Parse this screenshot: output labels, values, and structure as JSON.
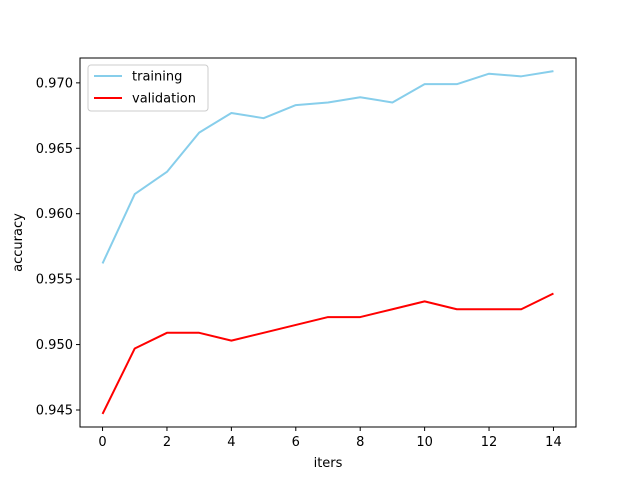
{
  "chart_data": {
    "type": "line",
    "title": "",
    "xlabel": "iters",
    "ylabel": "accuracy",
    "x": [
      0,
      1,
      2,
      3,
      4,
      5,
      6,
      7,
      8,
      9,
      10,
      11,
      12,
      13,
      14
    ],
    "xlim": [
      -0.7,
      14.7
    ],
    "ylim": [
      0.9437,
      0.9719
    ],
    "xticks": [
      0,
      2,
      4,
      6,
      8,
      10,
      12,
      14
    ],
    "xtick_labels": [
      "0",
      "2",
      "4",
      "6",
      "8",
      "10",
      "12",
      "14"
    ],
    "yticks": [
      0.945,
      0.95,
      0.955,
      0.96,
      0.965,
      0.97
    ],
    "ytick_labels": [
      "0.945",
      "0.950",
      "0.955",
      "0.960",
      "0.965",
      "0.970"
    ],
    "grid": false,
    "legend_position": "top-left",
    "series": [
      {
        "name": "training",
        "color": "#87ceeb",
        "values": [
          0.9562,
          0.9615,
          0.9632,
          0.9662,
          0.9677,
          0.9673,
          0.9683,
          0.9685,
          0.9689,
          0.9685,
          0.9699,
          0.9699,
          0.9707,
          0.9705,
          0.9709
        ]
      },
      {
        "name": "validation",
        "color": "#ff0000",
        "values": [
          0.9447,
          0.9497,
          0.9509,
          0.9509,
          0.9503,
          0.9509,
          0.9515,
          0.9521,
          0.9521,
          0.9527,
          0.9533,
          0.9527,
          0.9527,
          0.9527,
          0.9539
        ]
      }
    ]
  }
}
